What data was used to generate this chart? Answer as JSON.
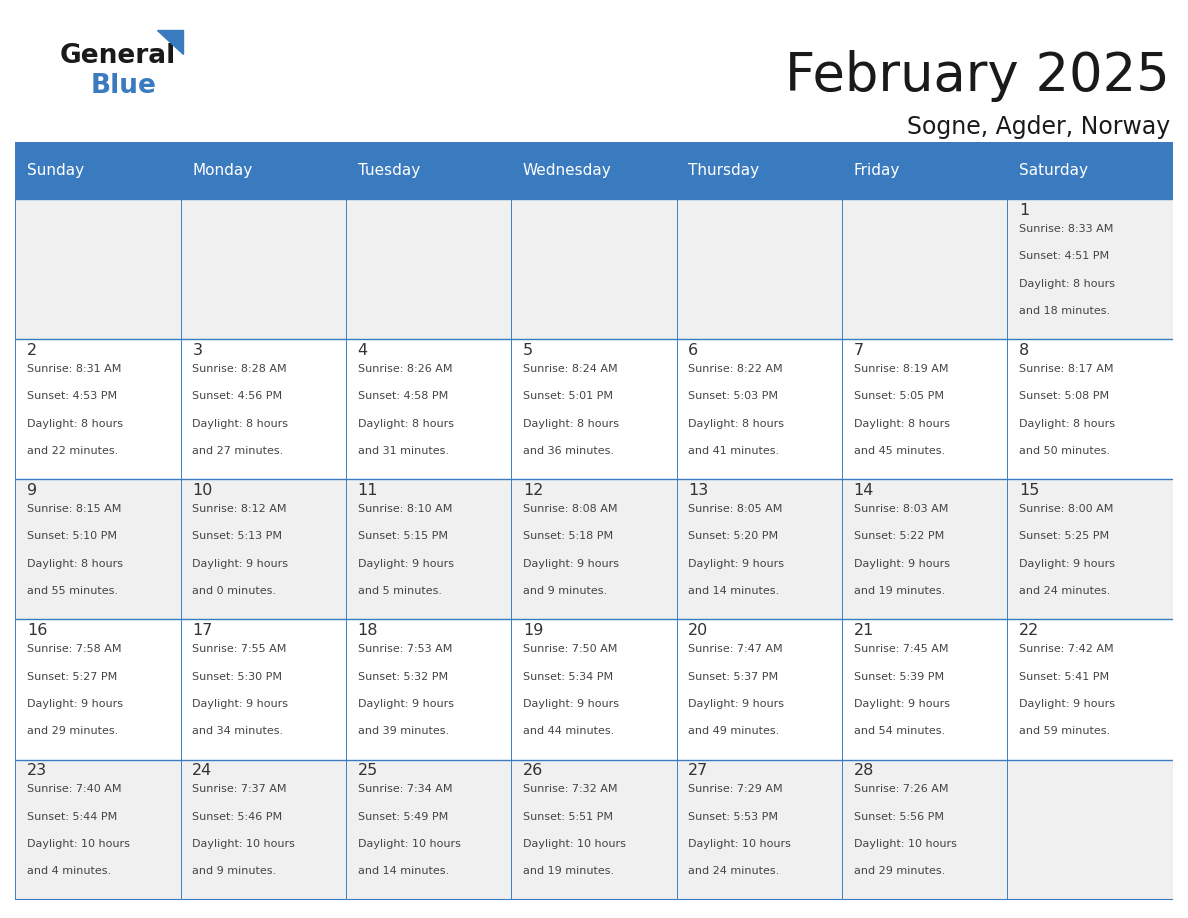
{
  "title": "February 2025",
  "subtitle": "Sogne, Agder, Norway",
  "header_color": "#3a7bbf",
  "header_text_color": "#ffffff",
  "day_names": [
    "Sunday",
    "Monday",
    "Tuesday",
    "Wednesday",
    "Thursday",
    "Friday",
    "Saturday"
  ],
  "bg_color": "#ffffff",
  "cell_bg_even": "#f0f0f0",
  "cell_bg_odd": "#ffffff",
  "border_color": "#3a7bbf",
  "text_color": "#444444",
  "day_num_color": "#333333",
  "logo_text_color": "#1a1a1a",
  "logo_blue_color": "#3a7bbf",
  "title_color": "#1a1a1a",
  "calendar": [
    [
      null,
      null,
      null,
      null,
      null,
      null,
      {
        "day": 1,
        "sunrise": "8:33 AM",
        "sunset": "4:51 PM",
        "daylight": "8 hours",
        "daylight2": "and 18 minutes."
      }
    ],
    [
      {
        "day": 2,
        "sunrise": "8:31 AM",
        "sunset": "4:53 PM",
        "daylight": "8 hours",
        "daylight2": "and 22 minutes."
      },
      {
        "day": 3,
        "sunrise": "8:28 AM",
        "sunset": "4:56 PM",
        "daylight": "8 hours",
        "daylight2": "and 27 minutes."
      },
      {
        "day": 4,
        "sunrise": "8:26 AM",
        "sunset": "4:58 PM",
        "daylight": "8 hours",
        "daylight2": "and 31 minutes."
      },
      {
        "day": 5,
        "sunrise": "8:24 AM",
        "sunset": "5:01 PM",
        "daylight": "8 hours",
        "daylight2": "and 36 minutes."
      },
      {
        "day": 6,
        "sunrise": "8:22 AM",
        "sunset": "5:03 PM",
        "daylight": "8 hours",
        "daylight2": "and 41 minutes."
      },
      {
        "day": 7,
        "sunrise": "8:19 AM",
        "sunset": "5:05 PM",
        "daylight": "8 hours",
        "daylight2": "and 45 minutes."
      },
      {
        "day": 8,
        "sunrise": "8:17 AM",
        "sunset": "5:08 PM",
        "daylight": "8 hours",
        "daylight2": "and 50 minutes."
      }
    ],
    [
      {
        "day": 9,
        "sunrise": "8:15 AM",
        "sunset": "5:10 PM",
        "daylight": "8 hours",
        "daylight2": "and 55 minutes."
      },
      {
        "day": 10,
        "sunrise": "8:12 AM",
        "sunset": "5:13 PM",
        "daylight": "9 hours",
        "daylight2": "and 0 minutes."
      },
      {
        "day": 11,
        "sunrise": "8:10 AM",
        "sunset": "5:15 PM",
        "daylight": "9 hours",
        "daylight2": "and 5 minutes."
      },
      {
        "day": 12,
        "sunrise": "8:08 AM",
        "sunset": "5:18 PM",
        "daylight": "9 hours",
        "daylight2": "and 9 minutes."
      },
      {
        "day": 13,
        "sunrise": "8:05 AM",
        "sunset": "5:20 PM",
        "daylight": "9 hours",
        "daylight2": "and 14 minutes."
      },
      {
        "day": 14,
        "sunrise": "8:03 AM",
        "sunset": "5:22 PM",
        "daylight": "9 hours",
        "daylight2": "and 19 minutes."
      },
      {
        "day": 15,
        "sunrise": "8:00 AM",
        "sunset": "5:25 PM",
        "daylight": "9 hours",
        "daylight2": "and 24 minutes."
      }
    ],
    [
      {
        "day": 16,
        "sunrise": "7:58 AM",
        "sunset": "5:27 PM",
        "daylight": "9 hours",
        "daylight2": "and 29 minutes."
      },
      {
        "day": 17,
        "sunrise": "7:55 AM",
        "sunset": "5:30 PM",
        "daylight": "9 hours",
        "daylight2": "and 34 minutes."
      },
      {
        "day": 18,
        "sunrise": "7:53 AM",
        "sunset": "5:32 PM",
        "daylight": "9 hours",
        "daylight2": "and 39 minutes."
      },
      {
        "day": 19,
        "sunrise": "7:50 AM",
        "sunset": "5:34 PM",
        "daylight": "9 hours",
        "daylight2": "and 44 minutes."
      },
      {
        "day": 20,
        "sunrise": "7:47 AM",
        "sunset": "5:37 PM",
        "daylight": "9 hours",
        "daylight2": "and 49 minutes."
      },
      {
        "day": 21,
        "sunrise": "7:45 AM",
        "sunset": "5:39 PM",
        "daylight": "9 hours",
        "daylight2": "and 54 minutes."
      },
      {
        "day": 22,
        "sunrise": "7:42 AM",
        "sunset": "5:41 PM",
        "daylight": "9 hours",
        "daylight2": "and 59 minutes."
      }
    ],
    [
      {
        "day": 23,
        "sunrise": "7:40 AM",
        "sunset": "5:44 PM",
        "daylight": "10 hours",
        "daylight2": "and 4 minutes."
      },
      {
        "day": 24,
        "sunrise": "7:37 AM",
        "sunset": "5:46 PM",
        "daylight": "10 hours",
        "daylight2": "and 9 minutes."
      },
      {
        "day": 25,
        "sunrise": "7:34 AM",
        "sunset": "5:49 PM",
        "daylight": "10 hours",
        "daylight2": "and 14 minutes."
      },
      {
        "day": 26,
        "sunrise": "7:32 AM",
        "sunset": "5:51 PM",
        "daylight": "10 hours",
        "daylight2": "and 19 minutes."
      },
      {
        "day": 27,
        "sunrise": "7:29 AM",
        "sunset": "5:53 PM",
        "daylight": "10 hours",
        "daylight2": "and 24 minutes."
      },
      {
        "day": 28,
        "sunrise": "7:26 AM",
        "sunset": "5:56 PM",
        "daylight": "10 hours",
        "daylight2": "and 29 minutes."
      },
      null
    ]
  ]
}
